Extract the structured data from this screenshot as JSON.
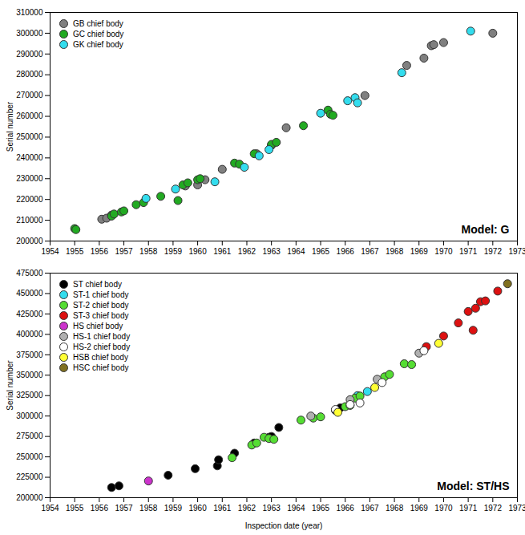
{
  "chart_data": [
    {
      "type": "scatter",
      "annotation": "Model: G",
      "ylabel": "Serial number",
      "xlim": [
        1954,
        1973
      ],
      "xticks": [
        1954,
        1955,
        1956,
        1957,
        1958,
        1959,
        1960,
        1961,
        1962,
        1963,
        1964,
        1965,
        1966,
        1967,
        1968,
        1969,
        1970,
        1971,
        1972,
        1973
      ],
      "ylim": [
        200000,
        310000
      ],
      "yticks": [
        200000,
        210000,
        220000,
        230000,
        240000,
        250000,
        260000,
        270000,
        280000,
        290000,
        300000,
        310000
      ],
      "legend": "top-left",
      "series": [
        {
          "name": "GB chief body",
          "color": "#808080",
          "x": [
            1956.1,
            1956.3,
            1956.5,
            1959.5,
            1960.0,
            1960.3,
            1961.0,
            1962.4,
            1963.0,
            1963.6,
            1966.8,
            1968.5,
            1969.2,
            1969.5,
            1969.6,
            1970.0,
            1972.0
          ],
          "y": [
            210500,
            211000,
            212500,
            226500,
            227000,
            229500,
            234500,
            242000,
            246000,
            254500,
            270000,
            284500,
            288000,
            294000,
            294500,
            295500,
            300000
          ]
        },
        {
          "name": "GC chief body",
          "color": "#22aa22",
          "x": [
            1955.0,
            1955.05,
            1956.5,
            1956.6,
            1956.9,
            1957.0,
            1957.5,
            1957.8,
            1958.5,
            1959.2,
            1959.4,
            1959.6,
            1960.0,
            1960.1,
            1961.5,
            1961.7,
            1962.3,
            1963.0,
            1963.2,
            1964.3,
            1965.3,
            1965.4,
            1965.5
          ],
          "y": [
            206000,
            205500,
            212000,
            213000,
            214000,
            214500,
            217500,
            218500,
            221500,
            219500,
            227000,
            228000,
            229500,
            230000,
            237500,
            237000,
            242000,
            246500,
            247500,
            255500,
            263000,
            261000,
            260500
          ]
        },
        {
          "name": "GK chief body",
          "color": "#33ddee",
          "x": [
            1957.9,
            1959.1,
            1960.7,
            1961.9,
            1962.5,
            1962.9,
            1965.0,
            1966.1,
            1966.4,
            1966.5,
            1968.3,
            1971.1
          ],
          "y": [
            220500,
            225000,
            228500,
            235500,
            241000,
            244000,
            261500,
            267500,
            269000,
            266500,
            281000,
            301000
          ]
        }
      ]
    },
    {
      "type": "scatter",
      "annotation": "Model: ST/HS",
      "ylabel": "Serial number",
      "xlabel": "Inspection date (year)",
      "xlim": [
        1954,
        1973
      ],
      "xticks": [
        1954,
        1955,
        1956,
        1957,
        1958,
        1959,
        1960,
        1961,
        1962,
        1963,
        1964,
        1965,
        1966,
        1967,
        1968,
        1969,
        1970,
        1971,
        1972,
        1973
      ],
      "ylim": [
        200000,
        475000
      ],
      "yticks": [
        200000,
        225000,
        250000,
        275000,
        300000,
        325000,
        350000,
        375000,
        400000,
        425000,
        450000,
        475000
      ],
      "legend": "top-left",
      "series": [
        {
          "name": "ST chief body",
          "color": "#000000",
          "x": [
            1956.5,
            1956.8,
            1958.8,
            1959.9,
            1960.8,
            1960.85,
            1961.5,
            1962.3,
            1962.9,
            1963.0,
            1963.3,
            1965.8
          ],
          "y": [
            212500,
            214500,
            227500,
            235500,
            239000,
            246500,
            254500,
            267000,
            274000,
            275000,
            286000,
            310000
          ]
        },
        {
          "name": "ST-1 chief body",
          "color": "#33ddee",
          "x": [
            1966.5,
            1966.9
          ],
          "y": [
            325000,
            330000
          ]
        },
        {
          "name": "ST-2 chief body",
          "color": "#55dd33",
          "x": [
            1961.4,
            1962.2,
            1962.4,
            1962.7,
            1962.9,
            1963.1,
            1964.2,
            1964.7,
            1965.0,
            1965.6,
            1966.0,
            1966.2,
            1966.4,
            1966.6,
            1967.6,
            1967.8,
            1968.4,
            1968.7
          ],
          "y": [
            249000,
            264500,
            267000,
            274000,
            272500,
            271500,
            295000,
            297500,
            299000,
            307000,
            311500,
            313000,
            322000,
            324500,
            348000,
            351000,
            364000,
            363000
          ]
        },
        {
          "name": "ST-3 chief body",
          "color": "#dd1111",
          "x": [
            1969.3,
            1970.0,
            1970.6,
            1971.0,
            1971.2,
            1971.3,
            1971.5,
            1971.7,
            1972.2
          ],
          "y": [
            385000,
            398000,
            414000,
            428000,
            405000,
            432000,
            440000,
            441000,
            453000
          ]
        },
        {
          "name": "HS chief body",
          "color": "#cc33cc",
          "x": [
            1958.0
          ],
          "y": [
            220500
          ]
        },
        {
          "name": "HS-1 chief body",
          "color": "#b0b0b0",
          "x": [
            1964.6,
            1966.2,
            1967.3,
            1969.0
          ],
          "y": [
            300000,
            320000,
            345000,
            377000
          ]
        },
        {
          "name": "HS-2 chief body",
          "color": "#ffffff",
          "x": [
            1965.6,
            1966.2,
            1966.6,
            1967.5,
            1969.2
          ],
          "y": [
            308000,
            314000,
            316000,
            341000,
            380000
          ]
        },
        {
          "name": "HSB chief body",
          "color": "#ffff33",
          "x": [
            1965.7,
            1967.2,
            1969.8
          ],
          "y": [
            304500,
            335000,
            389000
          ]
        },
        {
          "name": "HSC chief body",
          "color": "#807020",
          "x": [
            1972.6
          ],
          "y": [
            462000
          ]
        }
      ]
    }
  ]
}
